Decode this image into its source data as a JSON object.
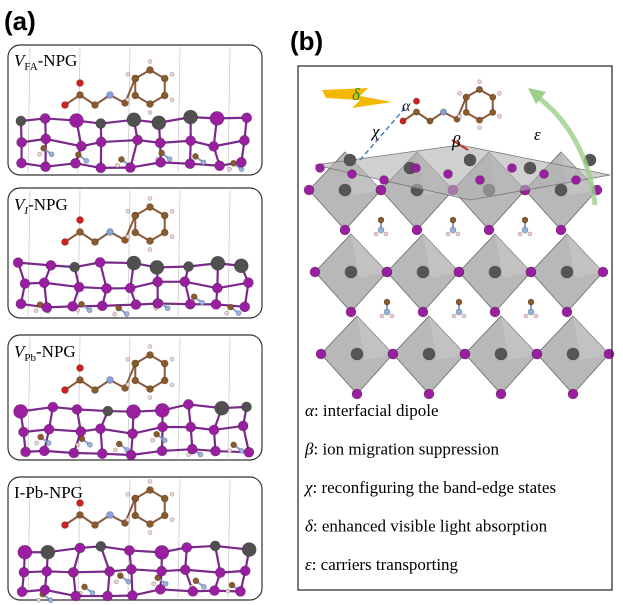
{
  "panel_a": {
    "label": "(a)",
    "structures": [
      {
        "name": "V",
        "sub": "FA",
        "suffix": "-NPG"
      },
      {
        "name": "V",
        "sub": "I",
        "suffix": "-NPG"
      },
      {
        "name": "V",
        "sub": "Pb",
        "suffix": "-NPG"
      },
      {
        "name": "I-Pb-NPG"
      }
    ]
  },
  "panel_b": {
    "label": "(b)",
    "symbols": {
      "delta": "δ",
      "alpha": "α",
      "chi": "χ",
      "beta": "β",
      "epsilon": "ε"
    },
    "legend": [
      {
        "symbol": "α",
        "text": ": interfacial dipole"
      },
      {
        "symbol": "β",
        "text": ": ion migration suppression"
      },
      {
        "symbol": "χ",
        "text": ": reconfiguring the band-edge states"
      },
      {
        "symbol": "δ",
        "text": ": enhanced visible light absorption"
      },
      {
        "symbol": "ε",
        "text": ": carriers transporting"
      }
    ]
  }
}
